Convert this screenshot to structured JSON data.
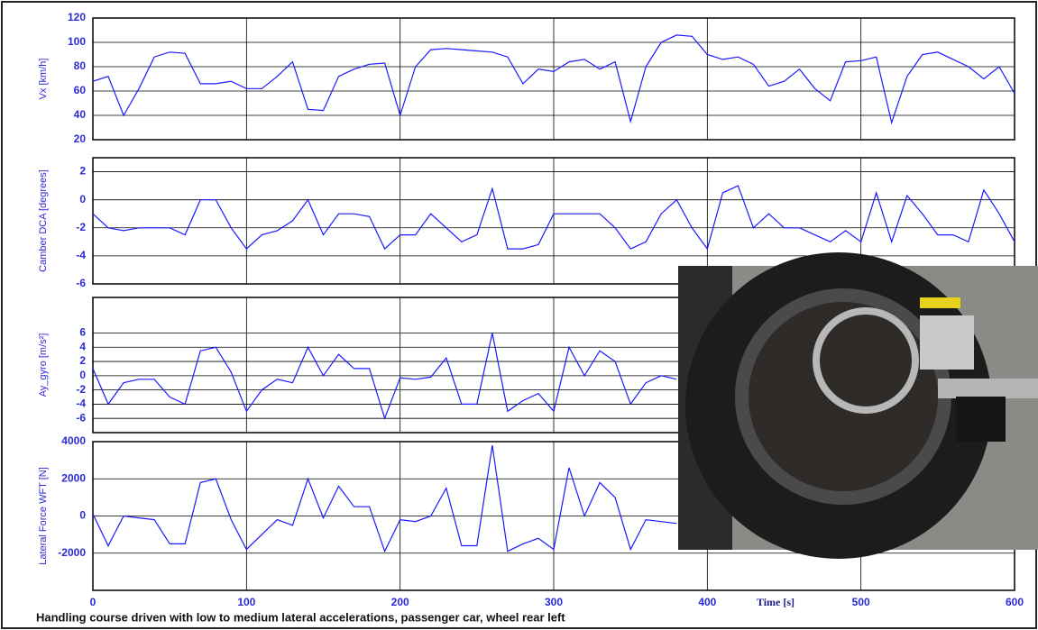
{
  "caption": "Handling course driven with low to medium lateral accelerations, passenger car, wheel rear left",
  "chart_data": [
    {
      "type": "line",
      "ylabel": "Vx  [km/h]",
      "color": "#1a1aff",
      "grid": true,
      "xlim": [
        0,
        600
      ],
      "xticks": [
        0,
        100,
        200,
        300,
        400,
        500,
        600
      ],
      "ylim": [
        20,
        120
      ],
      "yticks": [
        20,
        40,
        60,
        80,
        100,
        120
      ],
      "x": [
        0,
        10,
        20,
        30,
        40,
        50,
        60,
        70,
        80,
        90,
        100,
        110,
        120,
        130,
        140,
        150,
        160,
        170,
        180,
        190,
        200,
        210,
        220,
        230,
        240,
        250,
        260,
        270,
        280,
        290,
        300,
        310,
        320,
        330,
        340,
        350,
        360,
        370,
        380,
        390,
        400,
        410,
        420,
        430,
        440,
        450,
        460,
        470,
        480,
        490,
        500,
        510,
        520,
        530,
        540,
        550,
        560,
        570,
        580,
        590,
        600
      ],
      "values": [
        68,
        72,
        40,
        62,
        88,
        92,
        91,
        66,
        66,
        68,
        62,
        62,
        72,
        84,
        45,
        44,
        72,
        78,
        82,
        83,
        40,
        80,
        94,
        95,
        94,
        93,
        92,
        88,
        66,
        78,
        76,
        84,
        86,
        78,
        84,
        35,
        80,
        100,
        106,
        105,
        90,
        86,
        88,
        82,
        64,
        68,
        78,
        62,
        52,
        84,
        85,
        88,
        34,
        72,
        90,
        92,
        86,
        80,
        70,
        80,
        58
      ]
    },
    {
      "type": "line",
      "ylabel": "Camber DCA  [degrees]",
      "color": "#1a1aff",
      "grid": true,
      "xlim": [
        0,
        600
      ],
      "xticks": [
        0,
        100,
        200,
        300,
        400,
        500,
        600
      ],
      "ylim": [
        -6,
        3
      ],
      "yticks": [
        -6,
        -4,
        -2,
        0,
        2
      ],
      "x": [
        0,
        10,
        20,
        30,
        40,
        50,
        60,
        70,
        80,
        90,
        100,
        110,
        120,
        130,
        140,
        150,
        160,
        170,
        180,
        190,
        200,
        210,
        220,
        230,
        240,
        250,
        260,
        270,
        280,
        290,
        300,
        310,
        320,
        330,
        340,
        350,
        360,
        370,
        380,
        390,
        400,
        410,
        420,
        430,
        440,
        450,
        460,
        470,
        480,
        490,
        500,
        510,
        520,
        530,
        540,
        550,
        560,
        570,
        580,
        590,
        600
      ],
      "values": [
        -1,
        -2,
        -2.2,
        -2,
        -2,
        -2,
        -2.5,
        0,
        0,
        -2,
        -3.5,
        -2.5,
        -2.2,
        -1.5,
        0,
        -2.5,
        -1,
        -1,
        -1.2,
        -3.5,
        -2.5,
        -2.5,
        -1,
        -2,
        -3,
        -2.5,
        0.8,
        -3.5,
        -3.5,
        -3.2,
        -1,
        -1,
        -1,
        -1,
        -2,
        -3.5,
        -3,
        -1,
        0,
        -2,
        -3.5,
        0.5,
        1,
        -2,
        -1,
        -2,
        -2,
        -2.5,
        -3,
        -2.2,
        -3,
        0.5,
        -3,
        0.3,
        -1,
        -2.5,
        -2.5,
        -3,
        0.7,
        -1,
        -3
      ]
    },
    {
      "type": "line",
      "ylabel": "Ay_gyro [m/s²]",
      "color": "#1a1aff",
      "grid": true,
      "xlim": [
        0,
        600
      ],
      "xticks": [
        0,
        100,
        200,
        300,
        400,
        500,
        600
      ],
      "ylim": [
        -8,
        11
      ],
      "yticks": [
        -6,
        -4,
        -2,
        0,
        2,
        4,
        6
      ],
      "x": [
        0,
        10,
        20,
        30,
        40,
        50,
        60,
        70,
        80,
        90,
        100,
        110,
        120,
        130,
        140,
        150,
        160,
        170,
        180,
        190,
        200,
        210,
        220,
        230,
        240,
        250,
        260,
        270,
        280,
        290,
        300,
        310,
        320,
        330,
        340,
        350,
        360,
        370,
        380
      ],
      "values": [
        1,
        -4,
        -1,
        -0.5,
        -0.5,
        -3,
        -4,
        3.5,
        4,
        0.5,
        -5,
        -2,
        -0.5,
        -1,
        4,
        0,
        3,
        1,
        1,
        -6,
        -0.3,
        -0.5,
        -0.2,
        2.5,
        -4,
        -4,
        6,
        -5,
        -3.5,
        -2.5,
        -5,
        4,
        0,
        3.5,
        2,
        -4,
        -1,
        0,
        -0.5
      ]
    },
    {
      "type": "line",
      "ylabel": "Lateral Force WFT  [N]",
      "xlabel": "Time  [s]",
      "color": "#1a1aff",
      "grid": true,
      "xlim": [
        0,
        600
      ],
      "xticks": [
        0,
        100,
        200,
        300,
        400,
        500,
        600
      ],
      "ylim": [
        -4000,
        4000
      ],
      "yticks": [
        -2000,
        0,
        2000,
        4000
      ],
      "x": [
        0,
        10,
        20,
        30,
        40,
        50,
        60,
        70,
        80,
        90,
        100,
        110,
        120,
        130,
        140,
        150,
        160,
        170,
        180,
        190,
        200,
        210,
        220,
        230,
        240,
        250,
        260,
        270,
        280,
        290,
        300,
        310,
        320,
        330,
        340,
        350,
        360,
        370,
        380
      ],
      "values": [
        100,
        -1600,
        0,
        -100,
        -200,
        -1500,
        -1500,
        1800,
        2000,
        -200,
        -1800,
        -1000,
        -200,
        -500,
        2000,
        -100,
        1600,
        500,
        500,
        -1900,
        -200,
        -300,
        0,
        1500,
        -1600,
        -1600,
        3800,
        -1900,
        -1500,
        -1200,
        -1800,
        2600,
        0,
        1800,
        1000,
        -1800,
        -200,
        -300,
        -400
      ]
    }
  ]
}
